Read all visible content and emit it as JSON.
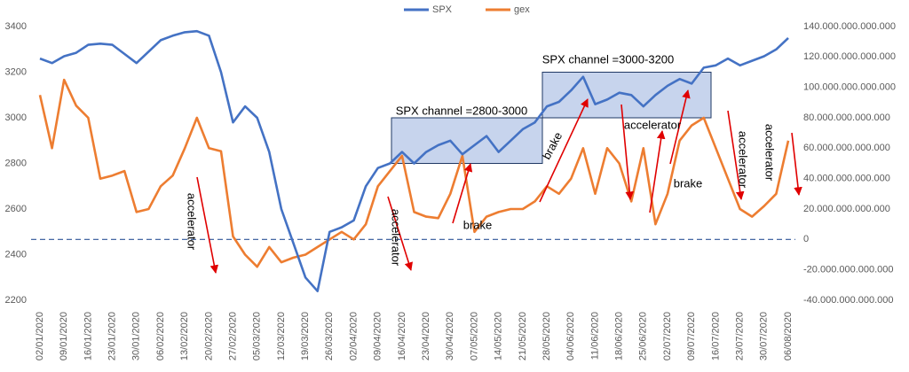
{
  "chart_data": {
    "type": "line",
    "categories": [
      "02/01/2020",
      null,
      "09/01/2020",
      null,
      "16/01/2020",
      null,
      "23/01/2020",
      null,
      "30/01/2020",
      null,
      "06/02/2020",
      null,
      "13/02/2020",
      null,
      "20/02/2020",
      null,
      "27/02/2020",
      null,
      "05/03/2020",
      null,
      "12/03/2020",
      null,
      "19/03/2020",
      null,
      "26/03/2020",
      null,
      "02/04/2020",
      null,
      "09/04/2020",
      null,
      "16/04/2020",
      null,
      "23/04/2020",
      null,
      "30/04/2020",
      null,
      "07/05/2020",
      null,
      "14/05/2020",
      null,
      "21/05/2020",
      null,
      "28/05/2020",
      null,
      "04/06/2020",
      null,
      "11/06/2020",
      null,
      "18/06/2020",
      null,
      "25/06/2020",
      null,
      "02/07/2020",
      null,
      "09/07/2020",
      null,
      "16/07/2020",
      null,
      "23/07/2020",
      null,
      "30/07/2020",
      null,
      "06/08/2020"
    ],
    "series": [
      {
        "name": "SPX",
        "color": "#4472c4",
        "axis": "y",
        "values": [
          3260,
          3240,
          3270,
          3285,
          3320,
          3325,
          3320,
          3280,
          3240,
          3290,
          3340,
          3360,
          3375,
          3380,
          3360,
          3200,
          2980,
          3050,
          3000,
          2850,
          2600,
          2450,
          2300,
          2240,
          2500,
          2520,
          2550,
          2700,
          2780,
          2800,
          2850,
          2800,
          2850,
          2880,
          2900,
          2840,
          2880,
          2920,
          2850,
          2900,
          2950,
          2980,
          3050,
          3070,
          3120,
          3180,
          3060,
          3080,
          3110,
          3100,
          3050,
          3100,
          3140,
          3170,
          3150,
          3220,
          3230,
          3260,
          3230,
          3250,
          3270,
          3300,
          3350
        ]
      },
      {
        "name": "gex",
        "color": "#ed7d31",
        "axis": "y2",
        "values": [
          95000000000000,
          60000000000000,
          105000000000000,
          88000000000000,
          80000000000000,
          40000000000000,
          42000000000000,
          45000000000000,
          18000000000000,
          20000000000000,
          35000000000000,
          42000000000000,
          60000000000000,
          80000000000000,
          60000000000000,
          58000000000000,
          2000000000000,
          -10000000000000,
          -18000000000000,
          -5000000000000,
          -15000000000000,
          -12000000000000,
          -10000000000000,
          -5000000000000,
          0,
          5000000000000,
          0,
          10000000000000,
          35000000000000,
          45000000000000,
          55000000000000,
          18000000000000,
          15000000000000,
          14000000000000,
          30000000000000,
          55000000000000,
          5000000000000,
          15000000000000,
          18000000000000,
          20000000000000,
          20000000000000,
          25000000000000,
          35000000000000,
          30000000000000,
          40000000000000,
          60000000000000,
          30000000000000,
          60000000000000,
          50000000000000,
          25000000000000,
          60000000000000,
          10000000000000,
          30000000000000,
          65000000000000,
          75000000000000,
          80000000000000,
          60000000000000,
          40000000000000,
          20000000000000,
          15000000000000,
          22000000000000,
          30000000000000,
          65000000000000
        ]
      }
    ],
    "ylim": [
      2200,
      3400
    ],
    "yticks": [
      2200,
      2400,
      2600,
      2800,
      3000,
      3200,
      3400
    ],
    "y2lim": [
      -40000000000000,
      140000000000000
    ],
    "y2ticks": [
      {
        "value": -40000000000000,
        "label": "-40.000.000.000.000"
      },
      {
        "value": -20000000000000,
        "label": "-20.000.000.000.000"
      },
      0,
      {
        "value": 20000000000000,
        "label": "20.000.000.000.000"
      },
      {
        "value": 40000000000000,
        "label": "40.000.000.000.000"
      },
      {
        "value": 60000000000000,
        "label": "60.000.000.000.000"
      },
      {
        "value": 80000000000000,
        "label": "80.000.000.000.000"
      },
      {
        "value": 100000000000000,
        "label": "100.000.000.000.000"
      },
      {
        "value": 120000000000000,
        "label": "120.000.000.000.000"
      },
      {
        "value": 140000000000000,
        "label": "140.000.000.000.000"
      }
    ],
    "zero_line": true,
    "legend": "top",
    "channels": [
      {
        "label": "SPX channel =2800-3000",
        "from": 2800,
        "to": 3000
      },
      {
        "label": "SPX channel =3000-3200",
        "from": 3000,
        "to": 3200
      }
    ],
    "annotations": [
      "accelerator",
      "accelerator",
      "brake",
      "brake",
      "accelerator",
      "brake",
      "accelerator",
      "accelerator"
    ]
  }
}
